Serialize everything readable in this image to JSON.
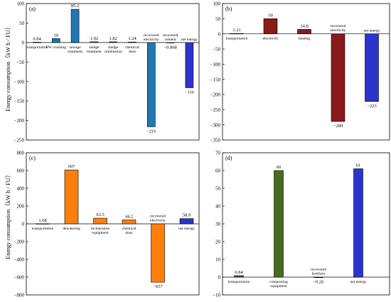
{
  "figure": {
    "ylabel": "Energy consumption（kW h / FU）"
  },
  "chart_data": [
    {
      "panel": "(a)",
      "type": "bar",
      "categories": [
        [
          "transportation"
        ],
        [
          "FW crushing"
        ],
        [
          "sewage",
          "treatment"
        ],
        [
          "sludge",
          "treatment"
        ],
        [
          "sludge",
          "combustion"
        ],
        [
          "chemical",
          "dose"
        ],
        [
          "recovered",
          "electricity"
        ],
        [
          "recovered",
          "cement"
        ],
        [
          "net energy"
        ]
      ],
      "values": [
        0.84,
        10,
        85.2,
        1.92,
        1.82,
        1.24,
        -216,
        -0.868,
        -116
      ],
      "value_labels": [
        "0.84",
        "10",
        "85.2",
        "1.92",
        "1.82",
        "1.24",
        "−216",
        "−0.868",
        "−116"
      ],
      "colors": [
        "#1f77b4",
        "#1f77b4",
        "#1f77b4",
        "#1f77b4",
        "#1f77b4",
        "#1f77b4",
        "#1f77b4",
        "#1f77b4",
        "#2a35cc"
      ],
      "yticks": [
        -250,
        -200,
        -150,
        -100,
        -50,
        0,
        50,
        100
      ],
      "ylim": [
        -250,
        100
      ]
    },
    {
      "panel": "(b)",
      "type": "bar",
      "categories": [
        [
          "transportation"
        ],
        [
          "electricity"
        ],
        [
          "heating"
        ],
        [
          "recovered",
          "electricity"
        ],
        [
          "net energy"
        ]
      ],
      "values": [
        1.21,
        50,
        14.8,
        -289,
        -223
      ],
      "value_labels": [
        "1.21",
        "50",
        "14.8",
        "−289",
        "−223"
      ],
      "colors": [
        "#8b1a1a",
        "#8b1a1a",
        "#8b1a1a",
        "#8b1a1a",
        "#2a35cc"
      ],
      "yticks": [
        -350,
        -300,
        -250,
        -200,
        -150,
        -100,
        -50,
        0,
        50,
        100
      ],
      "ylim": [
        -350,
        100
      ]
    },
    {
      "panel": "(c)",
      "type": "bar",
      "categories": [
        [
          "transportation"
        ],
        [
          "dewatering"
        ],
        [
          "incineration",
          "equipment"
        ],
        [
          "chemical",
          "dose"
        ],
        [
          "recovered",
          "electricity"
        ],
        [
          "net energy"
        ]
      ],
      "values": [
        1.68,
        607,
        63.5,
        44.2,
        -657,
        58.9
      ],
      "value_labels": [
        "1.68",
        "607",
        "63.5",
        "44.2",
        "−657",
        "58.9"
      ],
      "colors": [
        "#ff7f0e",
        "#ff7f0e",
        "#ff7f0e",
        "#ff7f0e",
        "#ff7f0e",
        "#2a35cc"
      ],
      "yticks": [
        -800,
        -600,
        -400,
        -200,
        0,
        200,
        400,
        600,
        800
      ],
      "ylim": [
        -800,
        800
      ]
    },
    {
      "panel": "(d)",
      "type": "bar",
      "categories": [
        [
          "transportation"
        ],
        [
          "composting",
          "equipment"
        ],
        [
          "recovered",
          "fertilizer"
        ],
        [
          "net energy"
        ]
      ],
      "values": [
        0.84,
        60,
        -0.26,
        61
      ],
      "value_labels": [
        "0.84",
        "60",
        "−0.26",
        "61"
      ],
      "colors": [
        "#4a6b1f",
        "#4a6b1f",
        "#4a6b1f",
        "#2a35cc"
      ],
      "yticks": [
        -10,
        0,
        10,
        20,
        30,
        40,
        50,
        60,
        70
      ],
      "ylim": [
        -10,
        70
      ]
    }
  ]
}
